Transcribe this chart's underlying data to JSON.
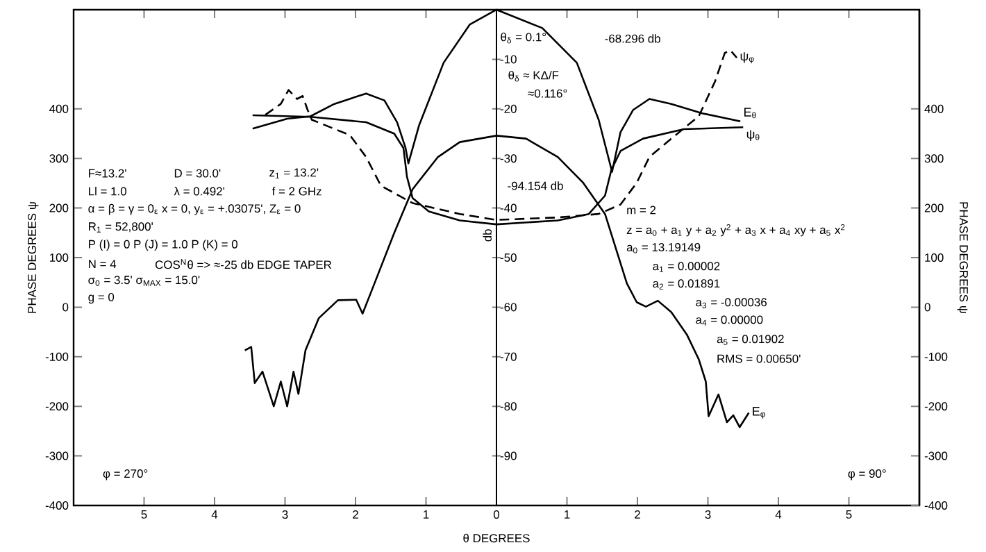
{
  "chart_data": {
    "type": "line",
    "xlabel": "θ DEGREES",
    "ylabel": "PHASE DEGREES ψ",
    "y2label": "PHASE DEGREES ψ",
    "y3label": "db",
    "xlim": [
      -6,
      6
    ],
    "xticks": [
      {
        "value": -5,
        "label": "5"
      },
      {
        "value": -4,
        "label": "4"
      },
      {
        "value": -3,
        "label": "3"
      },
      {
        "value": -2,
        "label": "2"
      },
      {
        "value": -1,
        "label": "1"
      },
      0,
      1,
      2,
      3,
      4,
      5
    ],
    "ylim": [
      -400,
      600
    ],
    "yticks": [
      -400,
      -300,
      -200,
      -100,
      0,
      100,
      200,
      300,
      400
    ],
    "y2lim": [
      -400,
      600
    ],
    "y2ticks": [
      -400,
      -300,
      -200,
      -100,
      0,
      100,
      200,
      300,
      400
    ],
    "y3lim": [
      -100,
      0
    ],
    "y3ticks": [
      -90,
      -80,
      -70,
      -60,
      -50,
      -40,
      -30,
      -20,
      -10
    ],
    "grid": false,
    "series": [
      {
        "name": "E$_{θ}$",
        "color": "#000000",
        "axis": "y3",
        "line_style": "solid",
        "x": [
          -3.46,
          -2.97,
          -2.64,
          -2.3,
          -1.85,
          -1.59,
          -1.41,
          -1.29,
          -1.25,
          -1.1,
          -0.75,
          -0.38,
          0,
          0.65,
          1.14,
          1.45,
          1.64,
          1.76,
          1.94,
          2.17,
          2.48,
          2.92,
          3.46
        ],
        "values": [
          -24.0,
          -22.0,
          -21.5,
          -19.0,
          -16.9,
          -18.3,
          -22.7,
          -27.9,
          -31.0,
          -23.4,
          -10.7,
          -3.0,
          0,
          -3.7,
          -10.7,
          -22.2,
          -32.7,
          -24.7,
          -20.2,
          -18.0,
          -19.0,
          -20.9,
          -22.5
        ]
      },
      {
        "name": "ψ$_{θ}$",
        "color": "#000000",
        "axis": "y",
        "line_style": "solid",
        "x": [
          -3.46,
          -2.64,
          -1.85,
          -1.45,
          -1.32,
          -1.27,
          -1.19,
          -0.96,
          -0.52,
          0,
          0.87,
          1.31,
          1.54,
          1.63,
          1.76,
          2.08,
          2.66,
          3.5
        ],
        "values": [
          387,
          384,
          373,
          350,
          321,
          263,
          220,
          193,
          175,
          167,
          175,
          188,
          225,
          277,
          315,
          340,
          359,
          363
        ]
      },
      {
        "name": "ψ$_{φ}$",
        "color": "#000000",
        "axis": "y",
        "line_style": "dashed",
        "x": [
          -3.28,
          -3.06,
          -2.95,
          -2.83,
          -2.75,
          -2.68,
          -2.62,
          -2.08,
          -1.85,
          -1.64,
          -1.19,
          -0.52,
          0,
          0.87,
          1.45,
          1.76,
          1.99,
          2.17,
          2.48,
          2.87,
          3.1,
          3.24,
          3.32,
          3.41
        ],
        "values": [
          388,
          410,
          438,
          420,
          426,
          398,
          378,
          347,
          303,
          245,
          210,
          188,
          176,
          181,
          188,
          207,
          251,
          303,
          340,
          385,
          455,
          513,
          518,
          503
        ]
      },
      {
        "name": "E$_{φ}$",
        "color": "#000000",
        "axis": "y3",
        "line_style": "solid",
        "x": [
          -3.57,
          -3.48,
          -3.43,
          -3.32,
          -3.16,
          -3.06,
          -2.97,
          -2.88,
          -2.81,
          -2.71,
          -2.52,
          -2.25,
          -1.99,
          -1.9,
          -1.75,
          -1.45,
          -1.19,
          -0.83,
          -0.52,
          0,
          0.42,
          0.87,
          1.23,
          1.54,
          1.85,
          1.99,
          2.12,
          2.29,
          2.48,
          2.7,
          2.87,
          2.97,
          3.01,
          3.15,
          3.27,
          3.36,
          3.45,
          3.58
        ],
        "values": [
          -68.7,
          -68.0,
          -75.3,
          -73.0,
          -80.0,
          -75.0,
          -80.0,
          -73.0,
          -77.5,
          -68.7,
          -62.2,
          -58.6,
          -58.5,
          -61.3,
          -55.9,
          -45.0,
          -36.2,
          -29.7,
          -26.7,
          -25.4,
          -26.0,
          -29.7,
          -34.9,
          -41.2,
          -55.2,
          -59.0,
          -59.9,
          -58.7,
          -61.0,
          -65.5,
          -70.5,
          -75.0,
          -82.0,
          -77.6,
          -83.2,
          -81.8,
          -84.2,
          -81.3
        ]
      }
    ],
    "annotations": [
      "F≈13.2'",
      "D = 30.0'",
      "z$_{1}$ = 13.2'",
      "Ll = 1.0",
      "λ = 0.492'",
      "f = 2 GHz",
      "α = β = γ = 0$_{ε}$ x = 0, y$_{ε}$ = +.03075', Z$_{ε}$ = 0",
      "R$_{1}$ = 52,800'",
      "P (I) = 0  P (J) = 1.0  P (K) = 0",
      "N = 4",
      "COS$^{N}$θ => ≈-25 db EDGE TAPER",
      "σ$_{0}$ = 3.5'  σ$_{MAX}$ = 15.0'",
      "g = 0",
      "φ = 270°",
      "φ = 90°",
      "θ$_{δ}$ = 0.1°",
      "-68.296 db",
      "θ$_{δ}$ ≈ KΔ/F",
      "≈0.116°",
      "-94.154 db",
      "m = 2",
      "z = a$_{0}$ + a$_{1}$ y + a$_{2}$ y$^{2}$ + a$_{3}$ x + a$_{4}$ xy + a$_{5}$ x$^{2}$",
      "a$_{0}$ = 13.19149",
      "a$_{1}$ = 0.00002",
      "a$_{2}$ = 0.01891",
      "a$_{3}$ = -0.00036",
      "a$_{4}$ = 0.00000",
      "a$_{5}$ = 0.01902",
      "RMS = 0.00650'"
    ]
  }
}
